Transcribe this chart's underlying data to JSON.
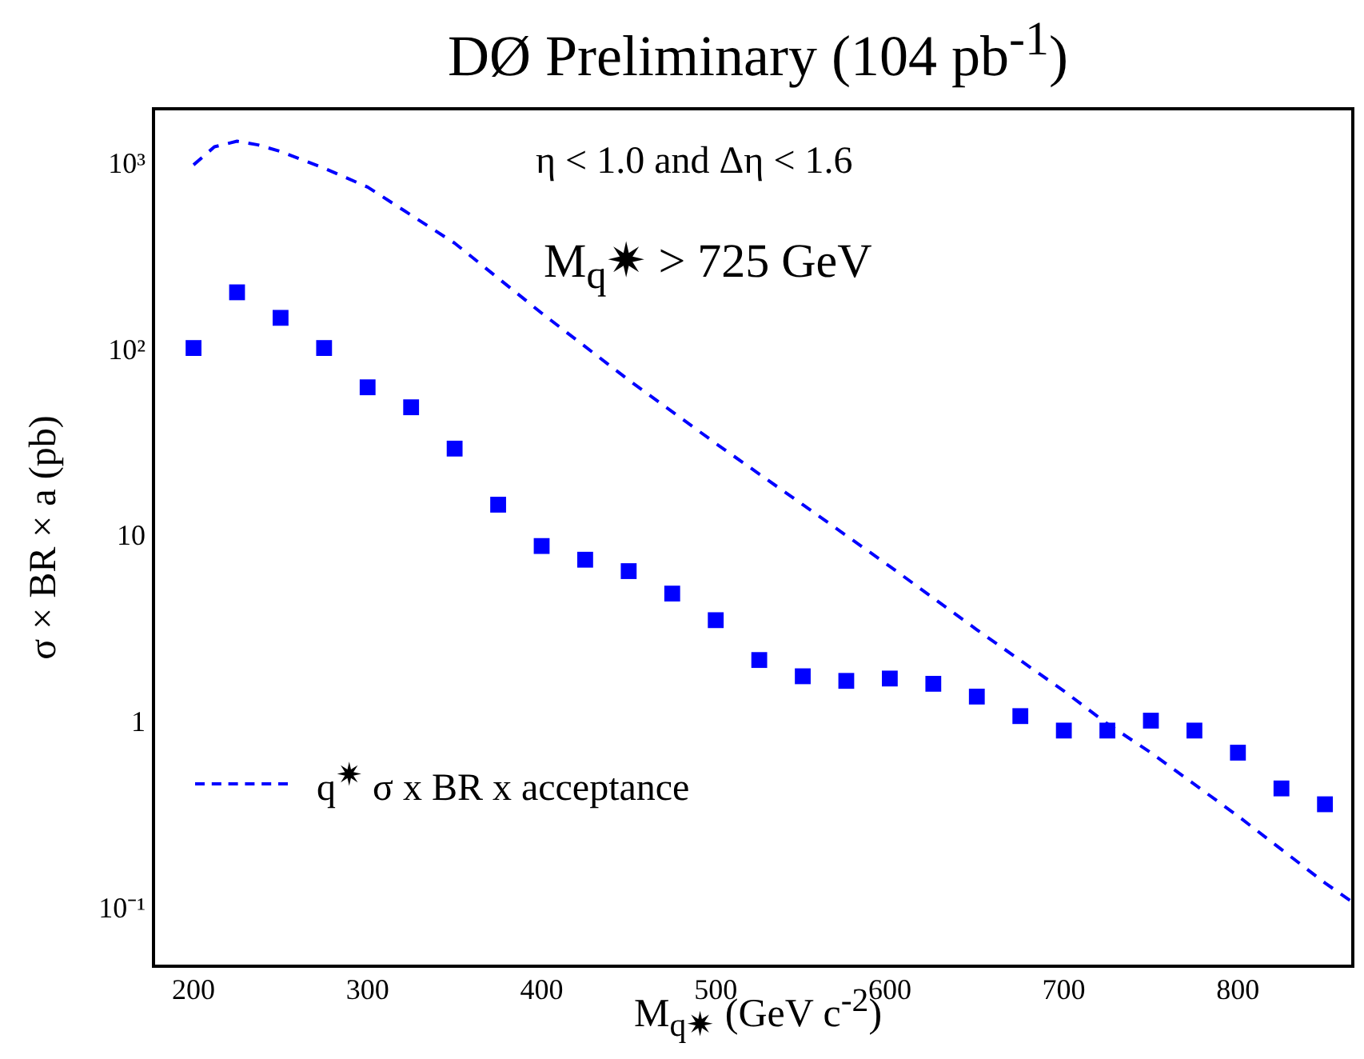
{
  "chart_data": {
    "type": "scatter",
    "title": "DØ Preliminary (104 pb$^{-1}$)",
    "xlabel": "M$_{q✷}$ (GeV c$^{-2}$)",
    "ylabel": "σ × BR × a (pb)",
    "annotations": [
      "η < 1.0 and Δη < 1.6",
      "M$_{q}$✷ > 725 GeV"
    ],
    "log": "y",
    "xlim": [
      177,
      866
    ],
    "xticks": [
      200,
      300,
      400,
      500,
      600,
      700,
      800
    ],
    "ylim": [
      0.05,
      2000
    ],
    "yticks": [
      {
        "value": 1000,
        "label": "10³"
      },
      {
        "value": 100,
        "label": "10²"
      },
      10,
      1,
      {
        "value": 0.1,
        "label": "10⁻¹"
      }
    ],
    "grid": false,
    "legend": "left",
    "marker": "square",
    "series": [
      {
        "color": "#0000ff",
        "x": [
          200,
          225,
          250,
          275,
          300,
          325,
          350,
          375,
          400,
          425,
          450,
          475,
          500,
          525,
          550,
          575,
          600,
          625,
          650,
          675,
          700,
          725,
          750,
          775,
          800,
          825,
          850
        ],
        "values": [
          104,
          207,
          151,
          104,
          64,
          50,
          30,
          15,
          9,
          7.6,
          6.6,
          5,
          3.6,
          2.2,
          1.8,
          1.7,
          1.75,
          1.64,
          1.4,
          1.1,
          0.92,
          0.92,
          1.04,
          0.92,
          0.7,
          0.45,
          0.37
        ]
      },
      {
        "type": "line",
        "name": "q$^{✷}$ σ x BR x acceptance",
        "color": "#0000ff",
        "marker": "none",
        "line_style": "dashed",
        "x": [
          200,
          212,
          225,
          237,
          250,
          275,
          300,
          350,
          400,
          450,
          500,
          550,
          600,
          650,
          700,
          725,
          750,
          800,
          850,
          866
        ],
        "values": [
          1000,
          1250,
          1340,
          1280,
          1180,
          960,
          760,
          380,
          160,
          70,
          32,
          15,
          7,
          3.2,
          1.5,
          1.0,
          0.7,
          0.32,
          0.14,
          0.11
        ]
      }
    ]
  }
}
